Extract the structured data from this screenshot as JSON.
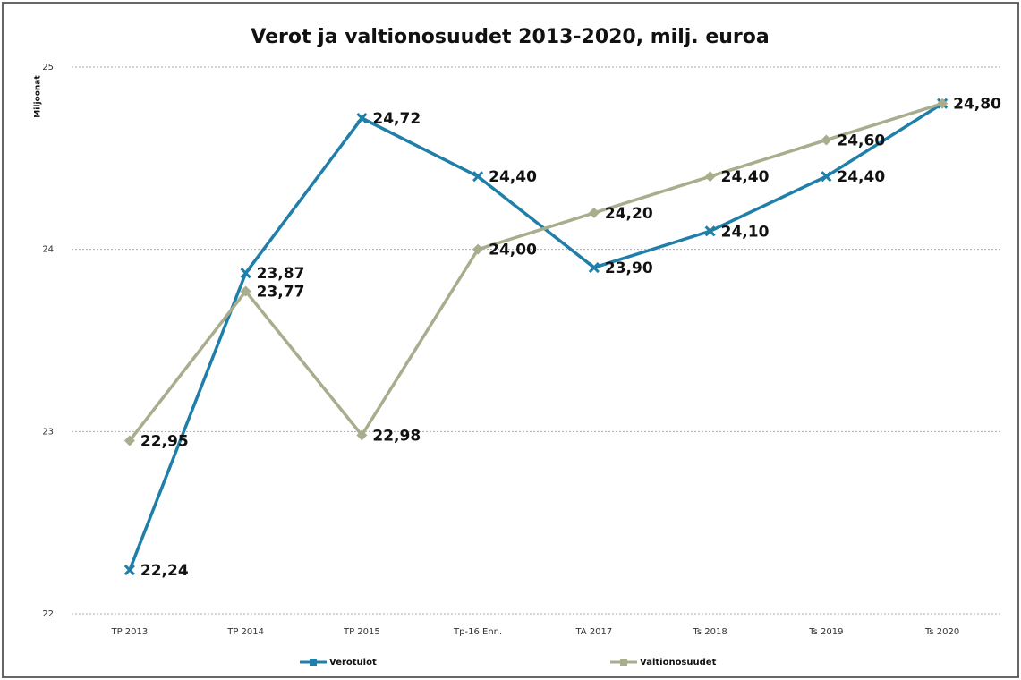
{
  "chart_data": {
    "type": "line",
    "title": "Verot ja valtionosuudet 2013-2020, milj. euroa",
    "y_label": "Miljoonat",
    "categories": [
      "TP 2013",
      "TP 2014",
      "TP 2015",
      "Tp-16 Enn.",
      "TA 2017",
      "Ts 2018",
      "Ts 2019",
      "Ts 2020"
    ],
    "series": [
      {
        "name": "Verotulot",
        "color": "#1f7fa8",
        "marker": "x",
        "values": [
          22.24,
          23.87,
          24.72,
          24.4,
          23.9,
          24.1,
          24.4,
          24.8
        ],
        "value_labels": [
          "22,24",
          "23,87",
          "24,72",
          "24,40",
          "23,90",
          "24,10",
          "24,40",
          "24,80"
        ]
      },
      {
        "name": "Valtionosuudet",
        "color": "#a9ad8e",
        "marker": "diamond",
        "values": [
          22.95,
          23.77,
          22.98,
          24.0,
          24.2,
          24.4,
          24.6,
          24.8
        ],
        "value_labels": [
          "22,95",
          "23,77",
          "22,98",
          "24,00",
          "24,20",
          "24,40",
          "24,60",
          ""
        ]
      }
    ],
    "ylim": [
      22,
      25
    ],
    "yticks": [
      22,
      23,
      24,
      25
    ],
    "grid": true,
    "legend": "bottom"
  }
}
